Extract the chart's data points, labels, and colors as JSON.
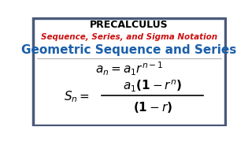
{
  "background_color": "#ffffff",
  "border_color": "#4a5a7a",
  "border_linewidth": 2.5,
  "title_text": "PRECALCULUS",
  "title_color": "#000000",
  "title_fontsize": 9,
  "subtitle_text": "Sequence, Series, and Sigma Notation",
  "subtitle_color": "#cc1111",
  "subtitle_fontsize": 7.5,
  "heading_text": "Geometric Sequence and Series",
  "heading_color": "#1a5faa",
  "heading_fontsize": 11,
  "formula1_fontsize": 11,
  "formula2_fontsize": 11,
  "formula_color": "#000000"
}
